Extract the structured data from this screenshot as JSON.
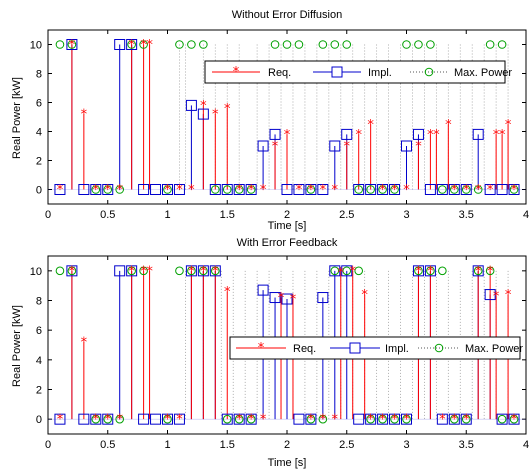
{
  "colors": {
    "req": "#ff0000",
    "impl": "#0000cc",
    "max": "#00a000",
    "axis": "#000000",
    "grid": "#9a9a9a"
  },
  "chart_data": [
    {
      "type": "stem",
      "title": "Without Error Diffusion",
      "xlabel": "Time [s]",
      "ylabel": "Real Power [kW]",
      "xlim": [
        0,
        4
      ],
      "ylim": [
        -1,
        11
      ],
      "xticks": [
        0,
        0.5,
        1,
        1.5,
        2,
        2.5,
        3,
        3.5,
        4
      ],
      "xtick_labels": [
        "0",
        "0.5",
        "1",
        "1.5",
        "2",
        "2.5",
        "3",
        "3.5",
        "4"
      ],
      "yticks": [
        0,
        2,
        4,
        6,
        8,
        10
      ],
      "ytick_labels": [
        "0",
        "2",
        "4",
        "6",
        "8",
        "10"
      ],
      "grid_x": [
        1.1,
        1.15,
        1.3,
        1.4,
        1.5,
        1.6,
        1.75,
        1.85,
        1.95,
        2.05,
        2.15,
        2.25,
        2.35,
        2.45,
        2.55,
        2.65,
        2.75,
        2.85,
        2.95,
        3.05,
        3.15,
        3.25,
        3.35,
        3.45,
        3.55,
        3.65,
        3.75,
        3.85
      ],
      "legend": {
        "position": "top-right",
        "entries": [
          "Req.",
          "Impl.",
          "Max. Power"
        ]
      },
      "series": [
        {
          "name": "Req.",
          "marker": "star",
          "x": [
            0.1,
            0.3,
            0.5,
            0.85,
            1.5,
            2.0,
            2.7,
            3.25,
            3.35,
            3.75,
            3.85,
            0.2,
            0.4,
            0.6,
            0.7,
            0.8,
            1.0,
            1.1,
            1.2,
            1.3,
            1.4,
            1.6,
            1.7,
            1.8,
            1.9,
            2.1,
            2.2,
            2.3,
            2.4,
            2.5,
            2.6,
            2.8,
            2.9,
            3.0,
            3.1,
            3.2,
            3.4,
            3.5,
            3.6,
            3.7,
            3.8,
            3.9
          ],
          "y": [
            0,
            5.2,
            0,
            10,
            5.6,
            3.8,
            4.5,
            3.8,
            4.5,
            3.8,
            4.5,
            10,
            0,
            0,
            10,
            10,
            0,
            0,
            0,
            5.8,
            5.2,
            0,
            0,
            0,
            3.0,
            0,
            0,
            0,
            0,
            3.0,
            3.8,
            0,
            0,
            0,
            3.0,
            3.8,
            0,
            0,
            0,
            0,
            3.8,
            0
          ]
        },
        {
          "name": "Impl.",
          "marker": "square",
          "x": [
            0.1,
            0.2,
            0.3,
            0.4,
            0.5,
            0.6,
            0.7,
            0.8,
            0.9,
            1.0,
            1.1,
            1.2,
            1.3,
            1.4,
            1.5,
            1.6,
            1.7,
            1.8,
            1.9,
            2.0,
            2.1,
            2.2,
            2.3,
            2.4,
            2.5,
            2.6,
            2.7,
            2.8,
            2.9,
            3.0,
            3.1,
            3.2,
            3.3,
            3.4,
            3.5,
            3.6,
            3.7,
            3.8,
            3.9
          ],
          "y": [
            0,
            10,
            0,
            0,
            0,
            10,
            10,
            0,
            0,
            0,
            0,
            5.8,
            5.2,
            0,
            0,
            0,
            0,
            3.0,
            3.8,
            0,
            0,
            0,
            0,
            3.0,
            3.8,
            0,
            0,
            0,
            0,
            3.0,
            3.8,
            0,
            0,
            0,
            0,
            3.8,
            0,
            0,
            0
          ]
        },
        {
          "name": "Max. Power",
          "marker": "circle",
          "x": [
            0.1,
            0.2,
            0.4,
            0.5,
            0.6,
            0.7,
            0.8,
            1.0,
            1.1,
            1.2,
            1.3,
            1.4,
            1.5,
            1.6,
            1.7,
            1.9,
            2.0,
            2.1,
            2.2,
            2.3,
            2.4,
            2.5,
            2.6,
            2.7,
            2.8,
            2.9,
            3.0,
            3.1,
            3.2,
            3.3,
            3.4,
            3.5,
            3.6,
            3.7,
            3.8,
            3.9
          ],
          "y": [
            10,
            10,
            0,
            0,
            0,
            10,
            10,
            0,
            10,
            10,
            10,
            0,
            0,
            0,
            0,
            10,
            10,
            10,
            0,
            10,
            10,
            10,
            0,
            0,
            0,
            0,
            10,
            10,
            10,
            0,
            0,
            0,
            0,
            10,
            10,
            0
          ]
        }
      ]
    },
    {
      "type": "stem",
      "title": "With Error Feedback",
      "xlabel": "Time [s]",
      "ylabel": "Real Power [kW]",
      "xlim": [
        0,
        4
      ],
      "ylim": [
        -1,
        11
      ],
      "xticks": [
        0,
        0.5,
        1,
        1.5,
        2,
        2.5,
        3,
        3.5,
        4
      ],
      "xtick_labels": [
        "0",
        "0.5",
        "1",
        "1.5",
        "2",
        "2.5",
        "3",
        "3.5",
        "4"
      ],
      "yticks": [
        0,
        2,
        4,
        6,
        8,
        10
      ],
      "ytick_labels": [
        "0",
        "2",
        "4",
        "6",
        "8",
        "10"
      ],
      "grid_x": [
        1.15,
        1.3,
        1.45,
        1.55,
        1.65,
        1.75,
        1.85,
        1.95,
        2.05,
        2.15,
        2.25,
        2.35,
        2.45,
        2.55,
        2.65,
        2.75,
        2.85,
        2.95,
        3.05,
        3.15,
        3.25,
        3.35,
        3.45,
        3.55,
        3.65,
        3.75,
        3.85
      ],
      "legend": {
        "position": "center-right",
        "entries": [
          "Req.",
          "Impl.",
          "Max. Power"
        ]
      },
      "series": [
        {
          "name": "Req.",
          "marker": "star",
          "x": [
            0.1,
            0.3,
            0.5,
            0.85,
            1.5,
            1.95,
            2.05,
            2.45,
            2.55,
            2.65,
            3.75,
            3.85,
            0.2,
            0.4,
            0.6,
            0.7,
            0.8,
            1.0,
            1.1,
            1.2,
            1.3,
            1.4,
            1.6,
            1.7,
            1.8,
            2.2,
            2.3,
            2.4,
            2.7,
            2.8,
            2.9,
            3.0,
            3.1,
            3.2,
            3.3,
            3.4,
            3.5,
            3.6,
            3.7,
            3.9
          ],
          "y": [
            0,
            5.2,
            0,
            10,
            8.6,
            8.2,
            8.1,
            9.9,
            10,
            8.4,
            8.3,
            8.4,
            10,
            0,
            0,
            10,
            10,
            0,
            0,
            10,
            10,
            10,
            0,
            0,
            0,
            0,
            0,
            0,
            0,
            0,
            0,
            0,
            10,
            10,
            0,
            0,
            0,
            10,
            10,
            0
          ]
        },
        {
          "name": "Impl.",
          "marker": "square",
          "x": [
            0.1,
            0.2,
            0.3,
            0.4,
            0.5,
            0.6,
            0.7,
            0.8,
            0.9,
            1.0,
            1.1,
            1.2,
            1.3,
            1.4,
            1.5,
            1.6,
            1.7,
            1.8,
            1.9,
            2.0,
            2.1,
            2.2,
            2.3,
            2.4,
            2.5,
            2.6,
            2.7,
            2.8,
            2.9,
            3.0,
            3.1,
            3.2,
            3.3,
            3.4,
            3.5,
            3.6,
            3.7,
            3.8,
            3.9
          ],
          "y": [
            0,
            10,
            0,
            0,
            0,
            10,
            10,
            0,
            0,
            0,
            0,
            10,
            10,
            10,
            0,
            0,
            0,
            8.7,
            8.2,
            8.1,
            0,
            0,
            8.2,
            10,
            10,
            0,
            0,
            0,
            0,
            0,
            10,
            10,
            0,
            0,
            0,
            10,
            8.4,
            0,
            0
          ]
        },
        {
          "name": "Max. Power",
          "marker": "circle",
          "x": [
            0.1,
            0.2,
            0.4,
            0.5,
            0.6,
            0.7,
            0.8,
            1.0,
            1.1,
            1.2,
            1.3,
            1.4,
            1.5,
            1.6,
            1.7,
            2.2,
            2.3,
            2.4,
            2.5,
            2.6,
            2.7,
            2.8,
            2.9,
            3.0,
            3.1,
            3.2,
            3.3,
            3.4,
            3.5,
            3.6,
            3.7,
            3.8,
            3.9
          ],
          "y": [
            10,
            10,
            0,
            0,
            0,
            10,
            10,
            0,
            10,
            10,
            10,
            10,
            0,
            0,
            0,
            0,
            0,
            10,
            10,
            10,
            0,
            0,
            0,
            0,
            10,
            10,
            10,
            0,
            0,
            10,
            10,
            0,
            0
          ]
        }
      ]
    }
  ]
}
